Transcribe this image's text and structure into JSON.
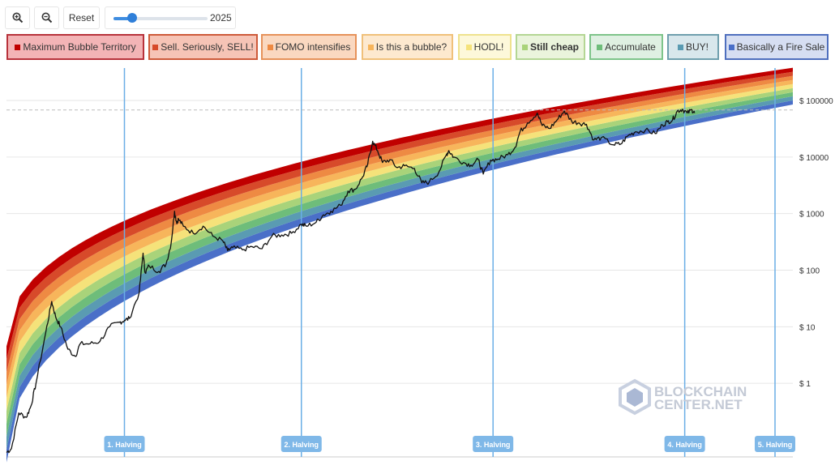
{
  "toolbar": {
    "zoom_in_icon": "zoom-in-icon",
    "zoom_out_icon": "zoom-out-icon",
    "reset_label": "Reset",
    "slider_value": "2025",
    "slider_position_fraction": 0.2
  },
  "legend": [
    {
      "label": "Maximum Bubble Territory",
      "color": "#c00000",
      "border": "#b8323b",
      "bg": "#f3b4b6",
      "active": false
    },
    {
      "label": "Sell. Seriously, SELL!",
      "color": "#d74a2a",
      "border": "#cd5a3a",
      "bg": "#f6c4b6",
      "active": false
    },
    {
      "label": "FOMO intensifies",
      "color": "#ee8a43",
      "border": "#e6925a",
      "bg": "#fad8c0",
      "active": false
    },
    {
      "label": "Is this a bubble?",
      "color": "#f7b55b",
      "border": "#f0c07a",
      "bg": "#fde9cf",
      "active": false
    },
    {
      "label": "HODL!",
      "color": "#f5e27a",
      "border": "#efe28e",
      "bg": "#fdf8da",
      "active": false
    },
    {
      "label": "Still cheap",
      "color": "#a9d37a",
      "border": "#b4d694",
      "bg": "#eaf4dc",
      "active": true
    },
    {
      "label": "Accumulate",
      "color": "#6ebd7a",
      "border": "#7ec48a",
      "bg": "#dff0e2",
      "active": false
    },
    {
      "label": "BUY!",
      "color": "#5a9bb2",
      "border": "#6f9fae",
      "bg": "#d8e7ec",
      "active": false
    },
    {
      "label": "Basically a Fire Sale",
      "color": "#4a6fc8",
      "border": "#4f6fbe",
      "bg": "#d6def2",
      "active": false
    }
  ],
  "watermark": {
    "line1": "BLOCKCHAIN",
    "line2": "CENTER.NET"
  },
  "chart_data": {
    "type": "line",
    "y_scale": "log",
    "y_ticks": [
      {
        "value": 1,
        "label": "$ 1"
      },
      {
        "value": 10,
        "label": "$ 10"
      },
      {
        "value": 100,
        "label": "$ 100"
      },
      {
        "value": 1000,
        "label": "$ 1000"
      },
      {
        "value": 10000,
        "label": "$ 10000"
      },
      {
        "value": 100000,
        "label": "$ 100000"
      }
    ],
    "x_range": [
      2010.5,
      2026.5
    ],
    "ylim": [
      0.05,
      400000
    ],
    "current_price_line": 68000,
    "halvings": [
      {
        "label": "1. Halving",
        "x": 2012.9
      },
      {
        "label": "2. Halving",
        "x": 2016.5
      },
      {
        "label": "3. Halving",
        "x": 2020.4
      },
      {
        "label": "4. Halving",
        "x": 2024.3
      },
      {
        "label": "5. Halving",
        "x": 2027.9
      }
    ],
    "rainbow_bands": {
      "count": 9,
      "bottom_start": 0.04,
      "bottom_end": 85000,
      "top_start": 4.5,
      "top_end": 380000
    },
    "series": [
      {
        "values": [
          [
            2010.5,
            0.06
          ],
          [
            2010.6,
            0.07
          ],
          [
            2010.75,
            0.3
          ],
          [
            2010.9,
            0.25
          ],
          [
            2011.0,
            0.4
          ],
          [
            2011.1,
            1.0
          ],
          [
            2011.3,
            8
          ],
          [
            2011.42,
            28
          ],
          [
            2011.5,
            15
          ],
          [
            2011.6,
            10
          ],
          [
            2011.75,
            4
          ],
          [
            2011.9,
            3
          ],
          [
            2012.0,
            5
          ],
          [
            2012.2,
            5
          ],
          [
            2012.4,
            5.5
          ],
          [
            2012.6,
            10
          ],
          [
            2012.8,
            12
          ],
          [
            2012.9,
            13
          ],
          [
            2013.0,
            14
          ],
          [
            2013.2,
            40
          ],
          [
            2013.28,
            200
          ],
          [
            2013.32,
            90
          ],
          [
            2013.4,
            120
          ],
          [
            2013.6,
            95
          ],
          [
            2013.75,
            130
          ],
          [
            2013.85,
            300
          ],
          [
            2013.92,
            1100
          ],
          [
            2013.96,
            700
          ],
          [
            2014.0,
            800
          ],
          [
            2014.1,
            600
          ],
          [
            2014.3,
            450
          ],
          [
            2014.5,
            600
          ],
          [
            2014.7,
            400
          ],
          [
            2014.9,
            330
          ],
          [
            2015.0,
            220
          ],
          [
            2015.1,
            250
          ],
          [
            2015.3,
            230
          ],
          [
            2015.5,
            260
          ],
          [
            2015.7,
            240
          ],
          [
            2015.9,
            400
          ],
          [
            2016.1,
            420
          ],
          [
            2016.3,
            450
          ],
          [
            2016.5,
            650
          ],
          [
            2016.6,
            600
          ],
          [
            2016.8,
            700
          ],
          [
            2016.95,
            950
          ],
          [
            2017.1,
            1100
          ],
          [
            2017.3,
            1400
          ],
          [
            2017.45,
            2500
          ],
          [
            2017.6,
            2700
          ],
          [
            2017.75,
            4500
          ],
          [
            2017.85,
            7500
          ],
          [
            2017.95,
            19000
          ],
          [
            2018.05,
            13000
          ],
          [
            2018.15,
            8000
          ],
          [
            2018.3,
            9000
          ],
          [
            2018.45,
            6500
          ],
          [
            2018.6,
            7000
          ],
          [
            2018.8,
            6300
          ],
          [
            2018.95,
            3500
          ],
          [
            2019.1,
            3600
          ],
          [
            2019.3,
            5500
          ],
          [
            2019.45,
            11000
          ],
          [
            2019.5,
            13000
          ],
          [
            2019.6,
            10000
          ],
          [
            2019.8,
            8000
          ],
          [
            2019.95,
            7200
          ],
          [
            2020.1,
            9000
          ],
          [
            2020.2,
            5000
          ],
          [
            2020.35,
            8800
          ],
          [
            2020.5,
            9200
          ],
          [
            2020.7,
            11000
          ],
          [
            2020.85,
            15000
          ],
          [
            2020.95,
            28000
          ],
          [
            2021.1,
            40000
          ],
          [
            2021.3,
            60000
          ],
          [
            2021.4,
            36000
          ],
          [
            2021.55,
            32000
          ],
          [
            2021.7,
            45000
          ],
          [
            2021.85,
            65000
          ],
          [
            2022.0,
            43000
          ],
          [
            2022.15,
            40000
          ],
          [
            2022.3,
            38000
          ],
          [
            2022.45,
            20000
          ],
          [
            2022.6,
            22000
          ],
          [
            2022.85,
            16500
          ],
          [
            2023.0,
            17000
          ],
          [
            2023.15,
            24000
          ],
          [
            2023.3,
            28000
          ],
          [
            2023.5,
            30000
          ],
          [
            2023.7,
            26000
          ],
          [
            2023.85,
            37000
          ],
          [
            2023.95,
            42000
          ],
          [
            2024.05,
            45000
          ],
          [
            2024.15,
            65000
          ],
          [
            2024.25,
            70000
          ],
          [
            2024.35,
            60000
          ],
          [
            2024.45,
            68000
          ],
          [
            2024.5,
            60000
          ]
        ]
      }
    ]
  }
}
